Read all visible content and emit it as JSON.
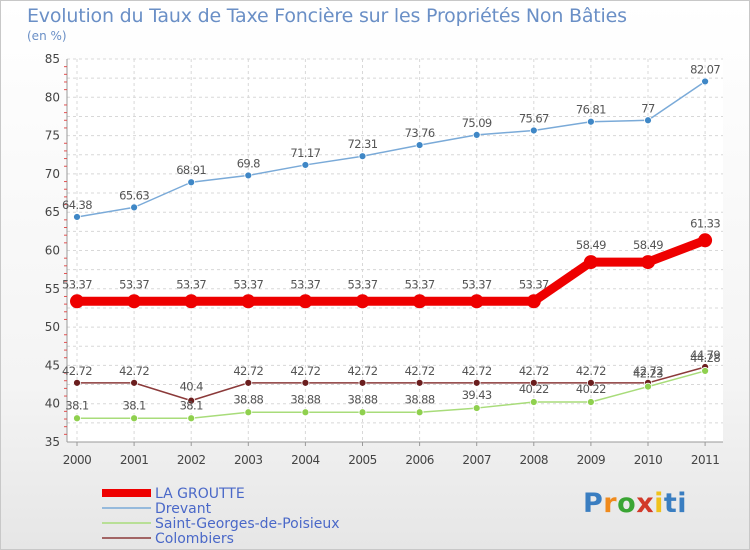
{
  "title": "Evolution du Taux de Taxe Foncière sur les Propriétés Non Bâties",
  "unit_label": "(en %)",
  "logo": {
    "text": "Proxiti"
  },
  "chart_data": {
    "type": "line",
    "title": "Evolution du Taux de Taxe Foncière sur les Propriétés Non Bâties",
    "ylabel": "(en %)",
    "xlabel": "",
    "categories": [
      "2000",
      "2001",
      "2002",
      "2003",
      "2004",
      "2005",
      "2006",
      "2007",
      "2008",
      "2009",
      "2010",
      "2011"
    ],
    "ylim": [
      35,
      85
    ],
    "yticks": [
      "35",
      "40",
      "45",
      "50",
      "55",
      "60",
      "65",
      "70",
      "75",
      "80",
      "85"
    ],
    "grid": true,
    "legend_position": "bottom-left",
    "series": [
      {
        "name": "Drevant",
        "color": "#7aaad8",
        "marker": "#3f87c6",
        "values": [
          64.38,
          65.63,
          68.91,
          69.8,
          71.17,
          72.31,
          73.76,
          75.09,
          75.67,
          76.81,
          77,
          82.07
        ],
        "labels": [
          "64.38",
          "65.63",
          "68.91",
          "69.8",
          "71.17",
          "72.31",
          "73.76",
          "75.09",
          "75.67",
          "76.81",
          "77",
          "82.07"
        ]
      },
      {
        "name": "LA GROUTTE",
        "color": "#ee0000",
        "marker": "#ee0000",
        "values": [
          53.37,
          53.37,
          53.37,
          53.37,
          53.37,
          53.37,
          53.37,
          53.37,
          53.37,
          58.49,
          58.49,
          61.33
        ],
        "labels": [
          "53.37",
          "53.37",
          "53.37",
          "53.37",
          "53.37",
          "53.37",
          "53.37",
          "53.37",
          "53.37",
          "58.49",
          "58.49",
          "61.33"
        ]
      },
      {
        "name": "Colombiers",
        "color": "#8b3a3a",
        "marker": "#6b1e1e",
        "values": [
          42.72,
          42.72,
          40.4,
          42.72,
          42.72,
          42.72,
          42.72,
          42.72,
          42.72,
          42.72,
          42.72,
          44.79
        ],
        "labels": [
          "42.72",
          "42.72",
          "40.4",
          "42.72",
          "42.72",
          "42.72",
          "42.72",
          "42.72",
          "42.72",
          "42.72",
          "42.72",
          "44.79"
        ]
      },
      {
        "name": "Saint-Georges-de-Poisieux",
        "color": "#a8dc7a",
        "marker": "#8fd04e",
        "values": [
          38.1,
          38.1,
          38.1,
          38.88,
          38.88,
          38.88,
          38.88,
          39.43,
          40.22,
          40.22,
          42.23,
          44.28
        ],
        "labels": [
          "38.1",
          "38.1",
          "38.1",
          "38.88",
          "38.88",
          "38.88",
          "38.88",
          "39.43",
          "40.22",
          "40.22",
          "42.23",
          "44.28"
        ]
      }
    ],
    "legend": [
      "LA GROUTTE",
      "Drevant",
      "Saint-Georges-de-Poisieux",
      "Colombiers"
    ]
  }
}
